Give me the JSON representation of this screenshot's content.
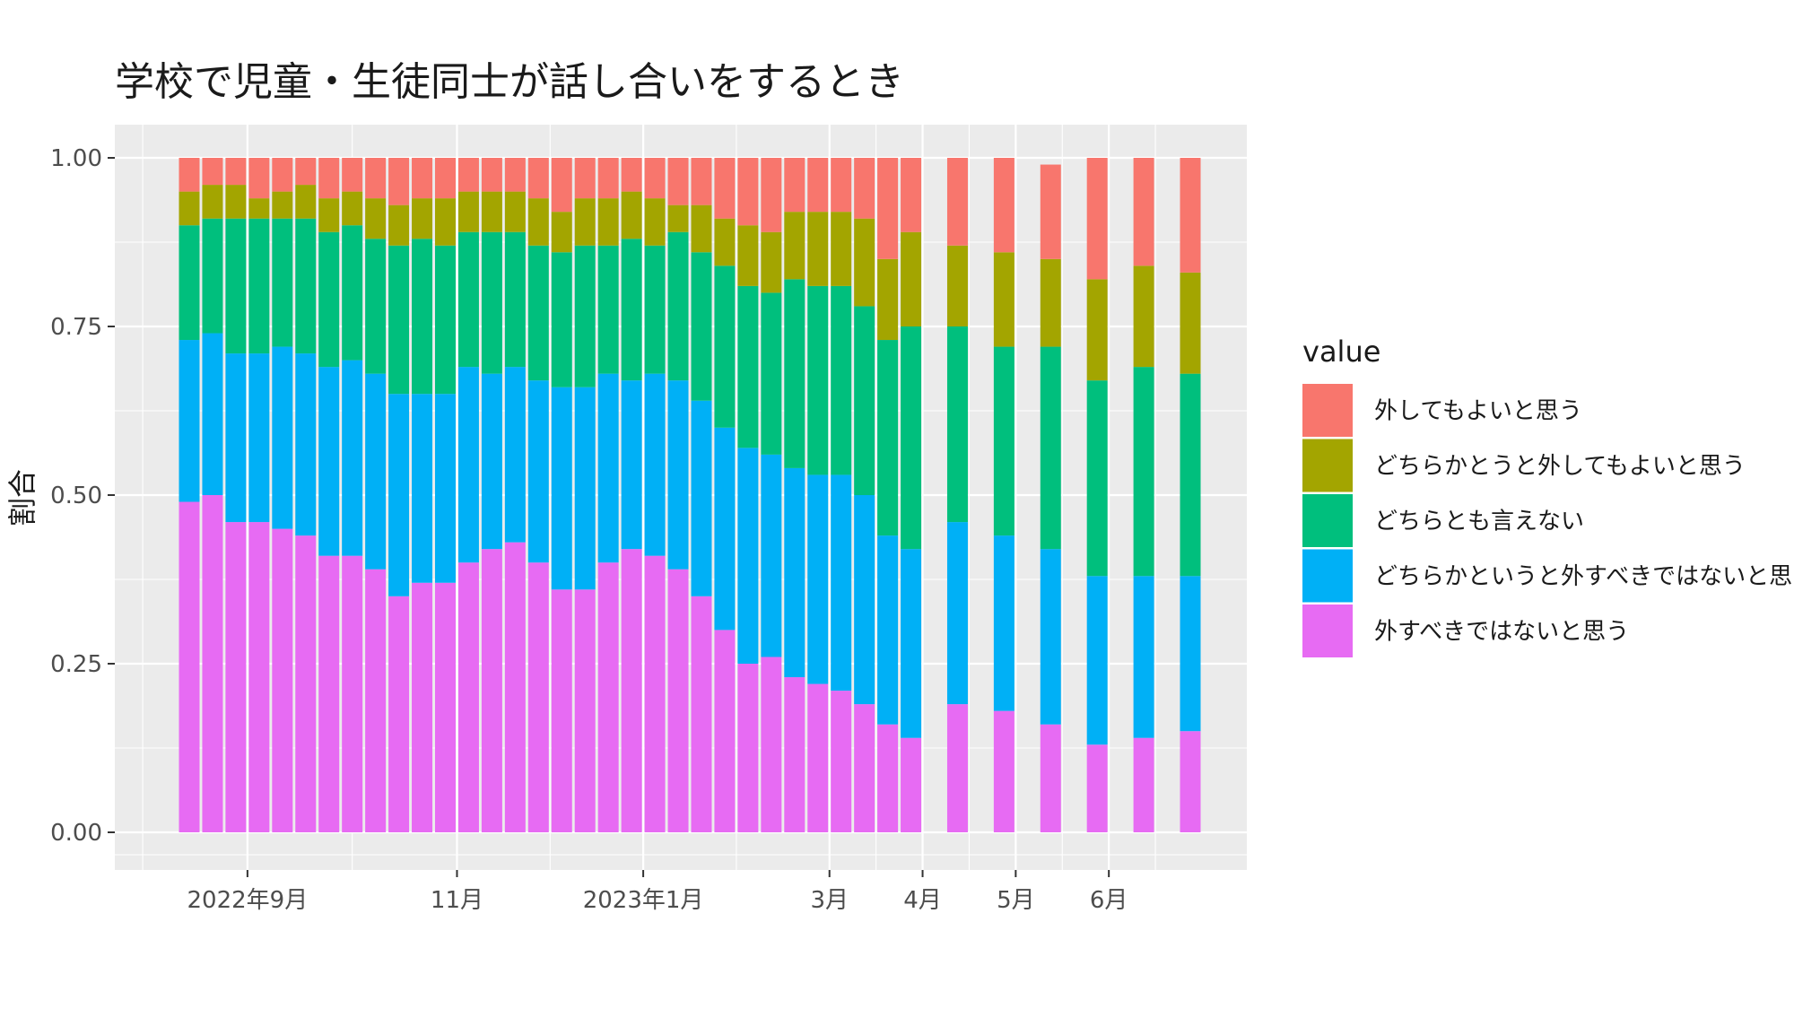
{
  "chart_data": {
    "type": "bar",
    "stacked": true,
    "title": "学校で児童・生徒同士が話し合いをするとき",
    "xlabel": "",
    "ylabel": "割合",
    "ylim": [
      0,
      1
    ],
    "y_ticks": [
      "0.00",
      "0.25",
      "0.50",
      "0.75",
      "1.00"
    ],
    "x_ticks": [
      {
        "label": "2022年9月",
        "at": 3.5
      },
      {
        "label": "11月",
        "at": 12.5
      },
      {
        "label": "2023年1月",
        "at": 20.5
      },
      {
        "label": "3月",
        "at": 28.5
      },
      {
        "label": "4月",
        "at": 32.5
      },
      {
        "label": "5月",
        "at": 36.5
      },
      {
        "label": "6月",
        "at": 40.5
      }
    ],
    "legend_title": "value",
    "legend_position": "right",
    "x": [
      1,
      2,
      3,
      4,
      5,
      6,
      7,
      8,
      9,
      10,
      11,
      12,
      13,
      14,
      15,
      16,
      17,
      18,
      19,
      20,
      21,
      22,
      23,
      24,
      25,
      26,
      27,
      28,
      29,
      30,
      31,
      32,
      34,
      36,
      38,
      40,
      42,
      44
    ],
    "series": [
      {
        "name": "外すべきではないと思う",
        "color": "#E76BF3",
        "values": [
          0.49,
          0.5,
          0.46,
          0.46,
          0.45,
          0.44,
          0.41,
          0.41,
          0.39,
          0.35,
          0.37,
          0.37,
          0.4,
          0.42,
          0.43,
          0.4,
          0.36,
          0.36,
          0.4,
          0.42,
          0.41,
          0.39,
          0.35,
          0.3,
          0.25,
          0.26,
          0.23,
          0.22,
          0.21,
          0.19,
          0.16,
          0.14,
          0.19,
          0.18,
          0.16,
          0.13,
          0.14,
          0.15
        ]
      },
      {
        "name": "どちらかというと外すべきではないと思う",
        "color": "#00B0F6",
        "values": [
          0.24,
          0.24,
          0.25,
          0.25,
          0.27,
          0.27,
          0.28,
          0.29,
          0.29,
          0.3,
          0.28,
          0.28,
          0.29,
          0.26,
          0.26,
          0.27,
          0.3,
          0.3,
          0.28,
          0.25,
          0.27,
          0.28,
          0.29,
          0.3,
          0.32,
          0.3,
          0.31,
          0.31,
          0.32,
          0.31,
          0.28,
          0.28,
          0.27,
          0.26,
          0.26,
          0.25,
          0.24,
          0.23
        ]
      },
      {
        "name": "どちらとも言えない",
        "color": "#00BF7D",
        "values": [
          0.17,
          0.17,
          0.2,
          0.2,
          0.19,
          0.2,
          0.2,
          0.2,
          0.2,
          0.22,
          0.23,
          0.22,
          0.2,
          0.21,
          0.2,
          0.2,
          0.2,
          0.21,
          0.19,
          0.21,
          0.19,
          0.22,
          0.22,
          0.24,
          0.24,
          0.24,
          0.28,
          0.28,
          0.28,
          0.28,
          0.29,
          0.33,
          0.29,
          0.28,
          0.3,
          0.29,
          0.31,
          0.3
        ]
      },
      {
        "name": "どちらかとうと外してもよいと思う",
        "color": "#A3A500",
        "values": [
          0.05,
          0.05,
          0.05,
          0.03,
          0.04,
          0.05,
          0.05,
          0.05,
          0.06,
          0.06,
          0.06,
          0.07,
          0.06,
          0.06,
          0.06,
          0.07,
          0.06,
          0.07,
          0.07,
          0.07,
          0.07,
          0.04,
          0.07,
          0.07,
          0.09,
          0.09,
          0.1,
          0.11,
          0.11,
          0.13,
          0.12,
          0.14,
          0.12,
          0.14,
          0.13,
          0.15,
          0.15,
          0.15
        ]
      },
      {
        "name": "外してもよいと思う",
        "color": "#F8766D",
        "values": [
          0.05,
          0.04,
          0.04,
          0.06,
          0.05,
          0.04,
          0.06,
          0.05,
          0.06,
          0.07,
          0.06,
          0.06,
          0.05,
          0.05,
          0.05,
          0.06,
          0.08,
          0.06,
          0.06,
          0.05,
          0.06,
          0.07,
          0.07,
          0.09,
          0.1,
          0.11,
          0.08,
          0.08,
          0.08,
          0.09,
          0.15,
          0.11,
          0.13,
          0.14,
          0.14,
          0.18,
          0.16,
          0.17
        ]
      }
    ],
    "legend_order": [
      4,
      3,
      2,
      1,
      0
    ]
  }
}
